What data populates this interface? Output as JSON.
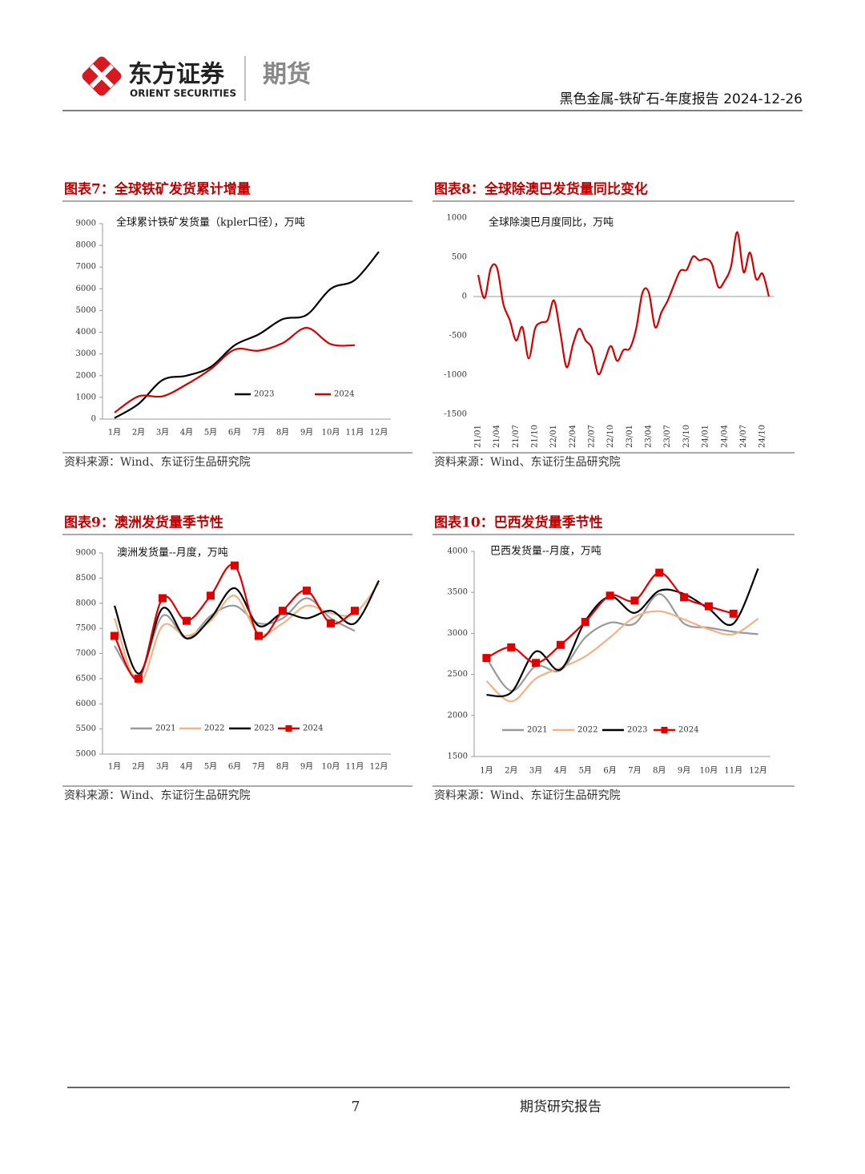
{
  "header": {
    "company": "东方证券",
    "company_en": "ORIENT SECURITIES",
    "division": "期货",
    "report": "黑色金属-铁矿石-年度报告 2024-12-26"
  },
  "figures": [
    {
      "caption": "图表7：全球铁矿发货累计增量",
      "source": "资料来源：Wind、东证衍生品研究院"
    },
    {
      "caption": "图表8：全球除澳巴发货量同比变化",
      "source": "资料来源：Wind、东证衍生品研究院"
    },
    {
      "caption": "图表9：澳洲发货量季节性",
      "source": "资料来源：Wind、东证衍生品研究院"
    },
    {
      "caption": "图表10：巴西发货量季节性",
      "source": "资料来源：Wind、东证衍生品研究院"
    }
  ],
  "chart_data": [
    {
      "type": "line",
      "title": "全球累计铁矿发货量（kpler口径），万吨",
      "categories": [
        "1月",
        "2月",
        "3月",
        "4月",
        "5月",
        "6月",
        "7月",
        "8月",
        "9月",
        "10月",
        "11月",
        "12月"
      ],
      "series": [
        {
          "name": "2023",
          "color": "#000000",
          "values": [
            50,
            700,
            1800,
            2000,
            2400,
            3400,
            3900,
            4600,
            4800,
            6000,
            6400,
            7700
          ]
        },
        {
          "name": "2024",
          "color": "#d40000",
          "values": [
            300,
            1050,
            1050,
            1600,
            2300,
            3200,
            3150,
            3500,
            4200,
            3450,
            3400,
            null
          ]
        }
      ],
      "ylim": [
        0,
        9000
      ],
      "yticks": [
        0,
        1000,
        2000,
        3000,
        4000,
        5000,
        6000,
        7000,
        8000,
        9000
      ],
      "legend": "bottom"
    },
    {
      "type": "line",
      "title": "全球除澳巴月度同比，万吨",
      "categories": [
        "21/01",
        null,
        null,
        "21/04",
        null,
        null,
        "21/07",
        null,
        null,
        "21/10",
        null,
        null,
        "22/01",
        null,
        null,
        "22/04",
        null,
        null,
        "22/07",
        null,
        null,
        "22/10",
        null,
        null,
        "23/01",
        null,
        null,
        "23/04",
        null,
        null,
        "23/07",
        null,
        null,
        "23/10",
        null,
        null,
        "24/01",
        null,
        null,
        "24/04",
        null,
        null,
        "24/07",
        null,
        null,
        "24/10",
        null
      ],
      "series": [
        {
          "name": null,
          "color": "#d40000",
          "values": [
            275,
            -20,
            360,
            360,
            -100,
            -300,
            -560,
            -390,
            -790,
            -410,
            -330,
            -300,
            -50,
            -460,
            -900,
            -610,
            -410,
            -560,
            -660,
            -990,
            -820,
            -630,
            -820,
            -680,
            -660,
            -410,
            50,
            50,
            -390,
            -200,
            -50,
            150,
            330,
            340,
            510,
            460,
            480,
            410,
            120,
            200,
            380,
            820,
            310,
            560,
            220,
            290,
            0
          ]
        }
      ],
      "ylim": [
        -1500,
        1000
      ],
      "yticks": [
        -1500,
        -1000,
        -500,
        0,
        500,
        1000
      ]
    },
    {
      "type": "line",
      "title": "澳洲发货量--月度，万吨",
      "categories": [
        "1月",
        "2月",
        "3月",
        "4月",
        "5月",
        "6月",
        "7月",
        "8月",
        "9月",
        "10月",
        "11月",
        "12月"
      ],
      "series": [
        {
          "name": "2021",
          "color": "#999999",
          "values": [
            7150,
            6550,
            7750,
            7300,
            7750,
            7950,
            7600,
            7700,
            8100,
            7700,
            7450,
            null
          ]
        },
        {
          "name": "2022",
          "color": "#f4b183",
          "values": [
            7700,
            6400,
            7550,
            7350,
            7650,
            8150,
            7400,
            7600,
            7950,
            7800,
            7800,
            8400
          ]
        },
        {
          "name": "2023",
          "color": "#000000",
          "values": [
            7950,
            6600,
            7900,
            7300,
            7700,
            8300,
            7550,
            7800,
            7700,
            7850,
            7600,
            8450
          ]
        },
        {
          "name": "2024",
          "color": "#e00000",
          "marker": "square",
          "values": [
            7350,
            6500,
            8100,
            7650,
            8150,
            8750,
            7350,
            7850,
            8250,
            7600,
            7850,
            null
          ]
        }
      ],
      "ylim": [
        5000,
        9000
      ],
      "yticks": [
        5000,
        5500,
        6000,
        6500,
        7000,
        7500,
        8000,
        8500,
        9000
      ],
      "legend": "bottom"
    },
    {
      "type": "line",
      "title": "巴西发货量--月度，万吨",
      "categories": [
        "1月",
        "2月",
        "3月",
        "4月",
        "5月",
        "6月",
        "7月",
        "8月",
        "9月",
        "10月",
        "11月",
        "12月"
      ],
      "series": [
        {
          "name": "2021",
          "color": "#999999",
          "values": [
            2700,
            2300,
            2600,
            2550,
            2950,
            3130,
            3120,
            3480,
            3120,
            3070,
            3020,
            2990
          ]
        },
        {
          "name": "2022",
          "color": "#f4b183",
          "values": [
            2420,
            2170,
            2450,
            2580,
            2720,
            2950,
            3200,
            3270,
            3170,
            3050,
            2990,
            3180
          ]
        },
        {
          "name": "2023",
          "color": "#000000",
          "values": [
            2250,
            2280,
            2780,
            2560,
            3150,
            3450,
            3250,
            3520,
            3480,
            3300,
            3120,
            3790
          ]
        },
        {
          "name": "2024",
          "color": "#e00000",
          "marker": "square",
          "values": [
            2700,
            2830,
            2640,
            2860,
            3140,
            3460,
            3400,
            3740,
            3440,
            3330,
            3240,
            null
          ]
        }
      ],
      "ylim": [
        1500,
        4000
      ],
      "yticks": [
        1500,
        2000,
        2500,
        3000,
        3500,
        4000
      ],
      "legend": "bottom"
    }
  ],
  "footer": {
    "page": "7",
    "label": "期货研究报告"
  }
}
